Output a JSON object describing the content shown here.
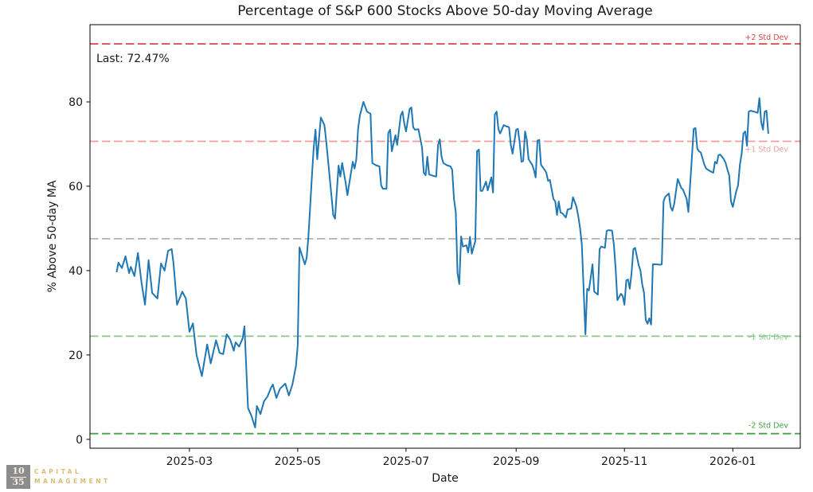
{
  "title": "Percentage of S&P 600 Stocks Above 50-day Moving Average",
  "annotation_last": "Last: 72.47%",
  "xlabel": "Date",
  "ylabel": "% Above 50-day MA",
  "logo": {
    "fraction_top": "10",
    "fraction_bottom": "35",
    "name_line1": "CAPITAL",
    "name_line2": "MANAGEMENT",
    "box_color": "#8c8c8c",
    "text_color": "#d9bd72"
  },
  "chart_data": {
    "type": "line",
    "title": "Percentage of S&P 600 Stocks Above 50-day Moving Average",
    "xlabel": "Date",
    "ylabel": "% Above 50-day MA",
    "legend": "none",
    "grid": false,
    "line_color": "#1f77b4",
    "ylim": [
      -2.1,
      98.3
    ],
    "y_ticks": [
      0,
      20,
      40,
      60,
      80
    ],
    "x_domain": [
      "2025-01-04",
      "2026-02-08"
    ],
    "x_ticks": [
      {
        "label": "2025-03",
        "date": "2025-03-01"
      },
      {
        "label": "2025-05",
        "date": "2025-05-01"
      },
      {
        "label": "2025-07",
        "date": "2025-07-01"
      },
      {
        "label": "2025-09",
        "date": "2025-09-01"
      },
      {
        "label": "2025-11",
        "date": "2025-11-01"
      },
      {
        "label": "2026-01",
        "date": "2026-01-01"
      }
    ],
    "mean": 47.55,
    "std": 23.1,
    "last_value": 72.47,
    "reference_lines": [
      {
        "name": "plus-2-std",
        "label": "+2 Std Dev",
        "value": 93.75,
        "color": "#dc4444",
        "label_dy": -5
      },
      {
        "name": "plus-1-std",
        "label": "+1 Std Dev",
        "value": 70.65,
        "color": "#f29d9d",
        "label_dy": 13
      },
      {
        "name": "mean",
        "label": "",
        "value": 47.55,
        "color": "#b3b3b3",
        "label_dy": 0
      },
      {
        "name": "minus-1-std",
        "label": "-1 Std Dev",
        "value": 24.45,
        "color": "#8fcb8f",
        "label_dy": 4
      },
      {
        "name": "minus-2-std",
        "label": "-2 Std Dev",
        "value": 1.35,
        "color": "#44a344",
        "label_dy": -7
      }
    ],
    "dates": [
      "2025-01-19",
      "2025-01-20",
      "2025-01-22",
      "2025-01-24",
      "2025-01-26",
      "2025-01-27",
      "2025-01-29",
      "2025-01-31",
      "2025-02-02",
      "2025-02-04",
      "2025-02-06",
      "2025-02-08",
      "2025-02-11",
      "2025-02-13",
      "2025-02-15",
      "2025-02-17",
      "2025-02-19",
      "2025-02-20",
      "2025-02-22",
      "2025-02-25",
      "2025-02-27",
      "2025-03-01",
      "2025-03-03",
      "2025-03-05",
      "2025-03-08",
      "2025-03-11",
      "2025-03-13",
      "2025-03-16",
      "2025-03-18",
      "2025-03-20",
      "2025-03-22",
      "2025-03-24",
      "2025-03-26",
      "2025-03-27",
      "2025-03-29",
      "2025-03-31",
      "2025-04-01",
      "2025-04-03",
      "2025-04-05",
      "2025-04-07",
      "2025-04-08",
      "2025-04-10",
      "2025-04-12",
      "2025-04-14",
      "2025-04-16",
      "2025-04-17",
      "2025-04-19",
      "2025-04-21",
      "2025-04-24",
      "2025-04-26",
      "2025-04-28",
      "2025-04-30",
      "2025-05-01",
      "2025-05-02",
      "2025-05-05",
      "2025-05-06",
      "2025-05-07",
      "2025-05-09",
      "2025-05-10",
      "2025-05-11",
      "2025-05-12",
      "2025-05-14",
      "2025-05-16",
      "2025-05-17",
      "2025-05-19",
      "2025-05-21",
      "2025-05-22",
      "2025-05-24",
      "2025-05-25",
      "2025-05-26",
      "2025-05-28",
      "2025-05-29",
      "2025-06-01",
      "2025-06-02",
      "2025-06-03",
      "2025-06-04",
      "2025-06-05",
      "2025-06-07",
      "2025-06-09",
      "2025-06-11",
      "2025-06-12",
      "2025-06-14",
      "2025-06-16",
      "2025-06-17",
      "2025-06-18",
      "2025-06-20",
      "2025-06-21",
      "2025-06-22",
      "2025-06-23",
      "2025-06-25",
      "2025-06-26",
      "2025-06-28",
      "2025-06-29",
      "2025-06-30",
      "2025-07-01",
      "2025-07-03",
      "2025-07-04",
      "2025-07-05",
      "2025-07-06",
      "2025-07-08",
      "2025-07-10",
      "2025-07-11",
      "2025-07-12",
      "2025-07-13",
      "2025-07-14",
      "2025-07-16",
      "2025-07-18",
      "2025-07-19",
      "2025-07-20",
      "2025-07-21",
      "2025-07-22",
      "2025-07-24",
      "2025-07-26",
      "2025-07-27",
      "2025-07-28",
      "2025-07-29",
      "2025-07-30",
      "2025-07-31",
      "2025-08-01",
      "2025-08-02",
      "2025-08-04",
      "2025-08-05",
      "2025-08-06",
      "2025-08-07",
      "2025-08-09",
      "2025-08-10",
      "2025-08-11",
      "2025-08-12",
      "2025-08-13",
      "2025-08-15",
      "2025-08-16",
      "2025-08-18",
      "2025-08-19",
      "2025-08-20",
      "2025-08-21",
      "2025-08-22",
      "2025-08-23",
      "2025-08-25",
      "2025-08-26",
      "2025-08-28",
      "2025-08-29",
      "2025-08-30",
      "2025-09-01",
      "2025-09-02",
      "2025-09-03",
      "2025-09-04",
      "2025-09-05",
      "2025-09-06",
      "2025-09-07",
      "2025-09-08",
      "2025-09-10",
      "2025-09-11",
      "2025-09-12",
      "2025-09-13",
      "2025-09-14",
      "2025-09-15",
      "2025-09-17",
      "2025-09-18",
      "2025-09-19",
      "2025-09-20",
      "2025-09-22",
      "2025-09-23",
      "2025-09-24",
      "2025-09-25",
      "2025-09-26",
      "2025-09-27",
      "2025-09-29",
      "2025-09-30",
      "2025-10-02",
      "2025-10-03",
      "2025-10-05",
      "2025-10-06",
      "2025-10-07",
      "2025-10-08",
      "2025-10-10",
      "2025-10-11",
      "2025-10-12",
      "2025-10-14",
      "2025-10-15",
      "2025-10-17",
      "2025-10-18",
      "2025-10-19",
      "2025-10-21",
      "2025-10-22",
      "2025-10-23",
      "2025-10-25",
      "2025-10-26",
      "2025-10-27",
      "2025-10-28",
      "2025-10-30",
      "2025-10-31",
      "2025-11-01",
      "2025-11-02",
      "2025-11-03",
      "2025-11-04",
      "2025-11-05",
      "2025-11-06",
      "2025-11-07",
      "2025-11-09",
      "2025-11-10",
      "2025-11-11",
      "2025-11-12",
      "2025-11-13",
      "2025-11-14",
      "2025-11-15",
      "2025-11-16",
      "2025-11-17",
      "2025-11-19",
      "2025-11-21",
      "2025-11-22",
      "2025-11-23",
      "2025-11-24",
      "2025-11-26",
      "2025-11-27",
      "2025-11-28",
      "2025-11-29",
      "2025-12-01",
      "2025-12-03",
      "2025-12-04",
      "2025-12-06",
      "2025-12-07",
      "2025-12-10",
      "2025-12-11",
      "2025-12-12",
      "2025-12-13",
      "2025-12-14",
      "2025-12-16",
      "2025-12-17",
      "2025-12-18",
      "2025-12-20",
      "2025-12-21",
      "2025-12-22",
      "2025-12-23",
      "2025-12-24",
      "2025-12-25",
      "2025-12-27",
      "2025-12-28",
      "2025-12-29",
      "2025-12-30",
      "2025-12-31",
      "2026-01-01",
      "2026-01-03",
      "2026-01-04",
      "2026-01-05",
      "2026-01-06",
      "2026-01-07",
      "2026-01-08",
      "2026-01-09",
      "2026-01-10",
      "2026-01-11",
      "2026-01-13",
      "2026-01-15",
      "2026-01-16",
      "2026-01-17",
      "2026-01-18",
      "2026-01-19",
      "2026-01-20",
      "2026-01-21"
    ],
    "values": [
      39.6,
      41.9,
      40.6,
      43.4,
      39.4,
      40.9,
      38.7,
      44.2,
      37.2,
      31.9,
      42.5,
      34.7,
      33.4,
      41.7,
      40.0,
      44.7,
      45.1,
      41.9,
      31.9,
      35.0,
      33.4,
      25.5,
      27.5,
      20.0,
      15.0,
      22.5,
      18.0,
      23.5,
      20.5,
      20.2,
      24.9,
      23.6,
      21.0,
      23.0,
      22.0,
      24.0,
      26.8,
      7.4,
      5.5,
      2.8,
      7.9,
      6.0,
      9.0,
      10.2,
      12.3,
      13.0,
      9.8,
      12.0,
      13.2,
      10.4,
      13.0,
      17.4,
      22.4,
      45.5,
      41.5,
      43.0,
      48.0,
      62.6,
      69.2,
      73.4,
      66.4,
      76.3,
      74.5,
      70.8,
      62.0,
      53.2,
      52.3,
      64.9,
      62.3,
      65.5,
      60.8,
      57.9,
      65.8,
      64.2,
      66.4,
      73.6,
      76.8,
      80.0,
      77.7,
      77.2,
      65.5,
      65.0,
      64.7,
      60.2,
      59.4,
      59.4,
      72.6,
      73.4,
      68.3,
      72.1,
      69.8,
      76.8,
      77.7,
      74.9,
      73.0,
      78.3,
      78.7,
      74.0,
      73.4,
      73.5,
      69.2,
      63.2,
      62.6,
      67.0,
      62.8,
      62.5,
      62.3,
      69.8,
      71.1,
      67.0,
      65.5,
      65.0,
      64.7,
      63.9,
      57.0,
      53.8,
      39.4,
      36.8,
      48.1,
      45.7,
      46.0,
      44.3,
      48.0,
      44.0,
      47.0,
      68.3,
      68.7,
      58.9,
      58.9,
      61.1,
      59.0,
      62.1,
      58.5,
      77.0,
      77.7,
      73.6,
      72.5,
      74.5,
      74.3,
      74.0,
      69.8,
      67.7,
      73.4,
      73.6,
      70.2,
      65.8,
      66.0,
      73.0,
      71.0,
      66.4,
      65.1,
      63.9,
      62.1,
      70.8,
      71.0,
      65.1,
      63.9,
      63.2,
      61.3,
      61.5,
      57.0,
      56.4,
      53.2,
      56.4,
      53.8,
      53.6,
      52.6,
      54.5,
      54.7,
      57.4,
      55.1,
      52.8,
      50.0,
      46.2,
      24.9,
      35.7,
      35.3,
      41.5,
      35.0,
      34.3,
      45.1,
      45.7,
      45.4,
      49.4,
      49.6,
      49.5,
      46.2,
      40.6,
      33.0,
      34.5,
      34.0,
      31.9,
      37.7,
      37.9,
      35.7,
      39.4,
      45.1,
      45.4,
      41.3,
      40.0,
      36.8,
      34.7,
      28.3,
      27.4,
      28.7,
      27.2,
      41.5,
      41.5,
      41.4,
      41.5,
      56.4,
      57.5,
      58.3,
      55.1,
      54.2,
      55.8,
      61.7,
      59.6,
      59.2,
      57.0,
      53.9,
      73.6,
      73.8,
      68.9,
      68.3,
      68.0,
      65.1,
      64.2,
      63.9,
      63.4,
      63.2,
      65.8,
      65.4,
      67.4,
      67.5,
      66.4,
      65.5,
      63.9,
      62.6,
      56.4,
      55.1,
      58.9,
      60.2,
      65.1,
      67.7,
      72.5,
      73.0,
      69.6,
      77.7,
      77.9,
      77.7,
      77.4,
      80.9,
      75.3,
      73.4,
      77.7,
      77.9,
      72.47
    ]
  }
}
